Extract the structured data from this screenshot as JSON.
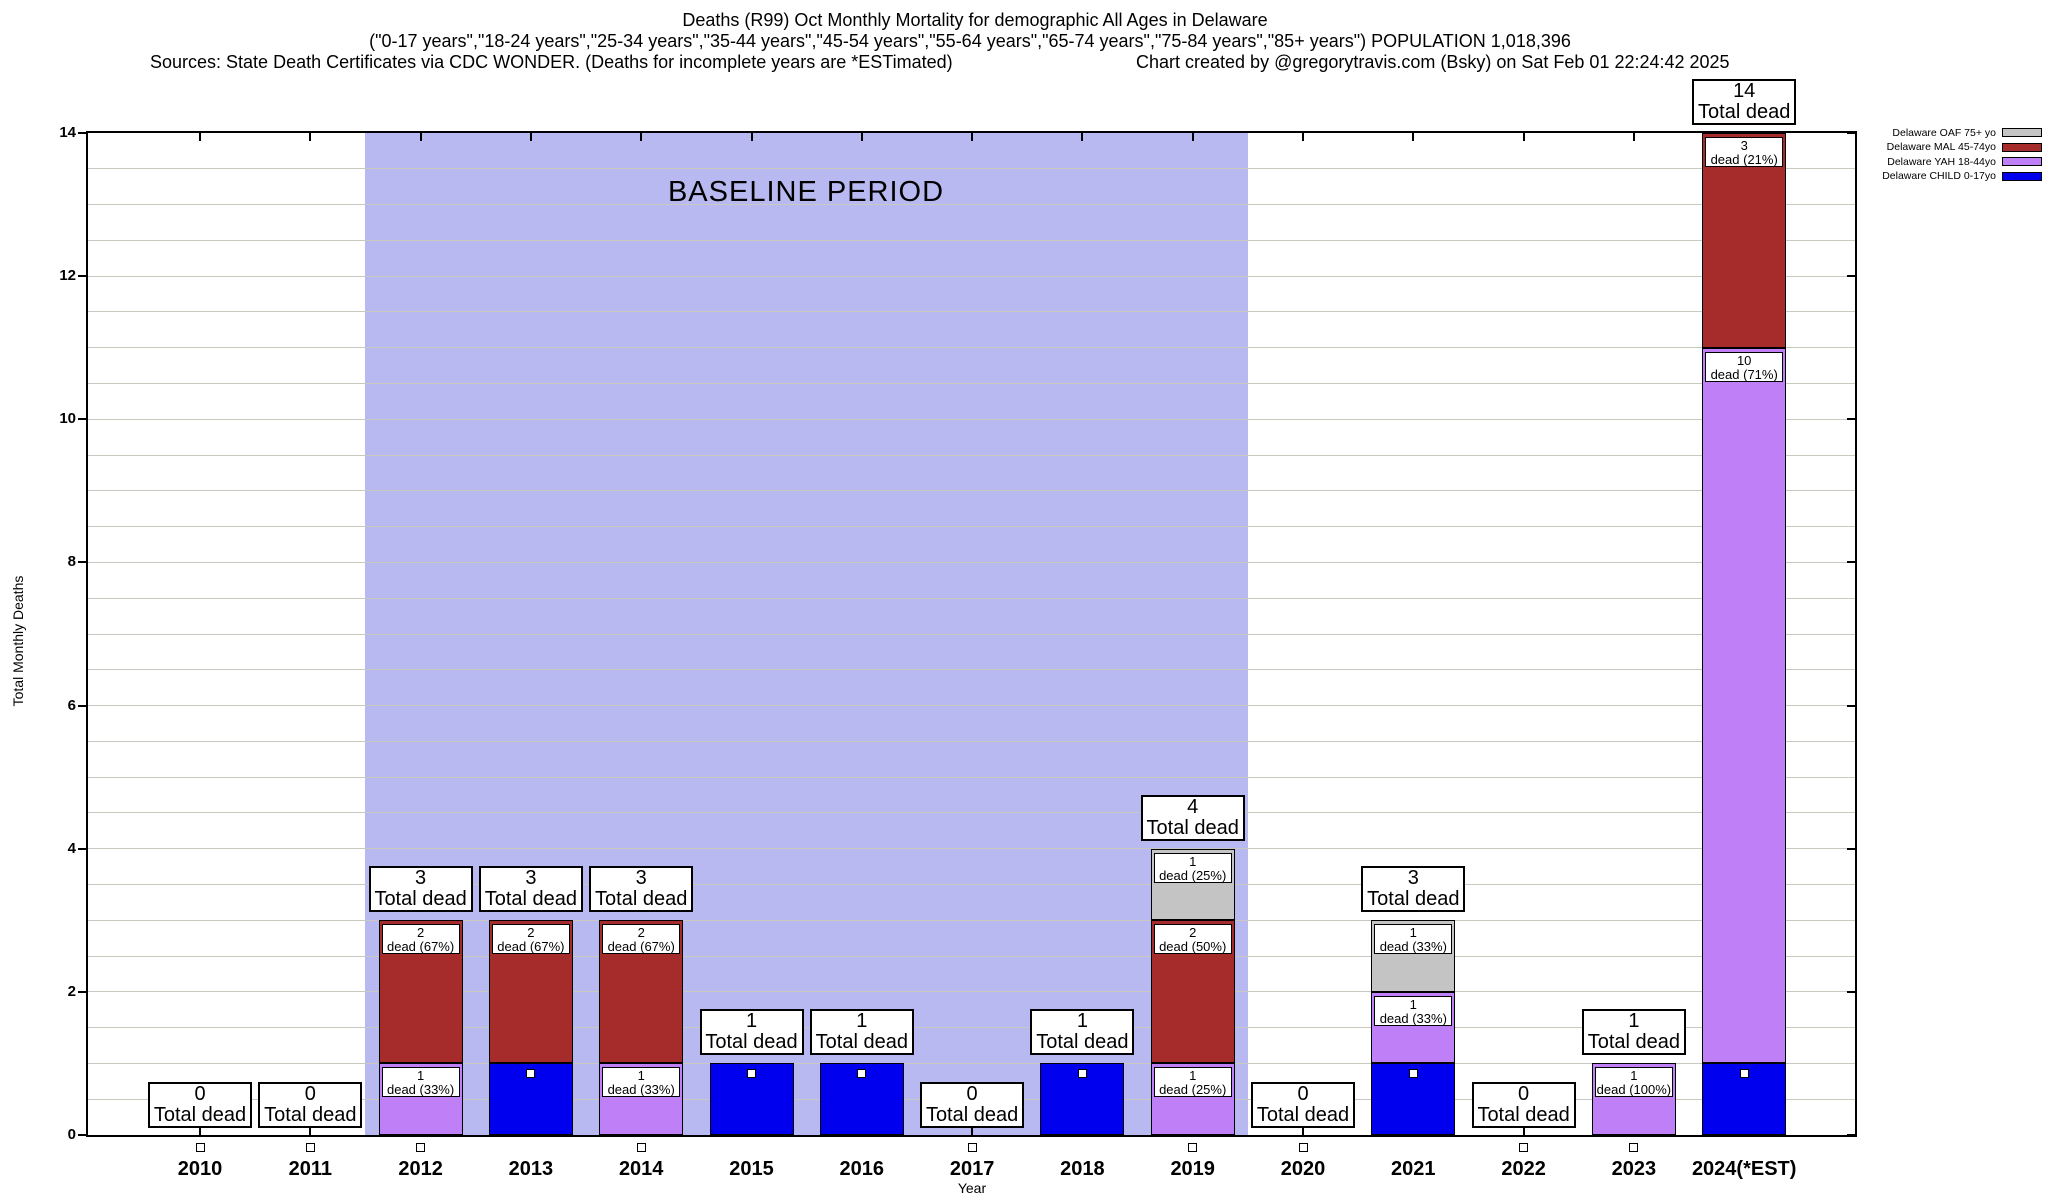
{
  "title": {
    "line1": "Deaths (R99) Oct Monthly Mortality for demographic All Ages in Delaware",
    "line2": "(\"0-17 years\",\"18-24 years\",\"25-34 years\",\"35-44 years\",\"45-54 years\",\"55-64 years\",\"65-74 years\",\"75-84 years\",\"85+ years\") POPULATION 1,018,396",
    "line3_left": "Sources: State Death Certificates via CDC WONDER. (Deaths for incomplete years are *ESTimated)",
    "line3_right": "Chart created by @gregorytravis.com (Bsky) on Sat Feb 01 22:24:42 2025"
  },
  "colors": {
    "baseline_fill": "#b9b9f2",
    "grid": "#c9c9c0",
    "axis": "#000000"
  },
  "chart_data": {
    "type": "bar",
    "stacked": true,
    "title": "Deaths (R99) Oct Monthly Mortality for demographic All Ages in Delaware",
    "xlabel": "Year",
    "ylabel": "Total Monthly Deaths",
    "ylim": [
      0,
      14
    ],
    "ytick_step": 2,
    "minor_grid_step": 0.5,
    "grid": true,
    "legend_position": "top-right-outside",
    "baseline_period": {
      "label": "BASELINE PERIOD",
      "start": "2012",
      "end": "2019"
    },
    "categories": [
      "2010",
      "2011",
      "2012",
      "2013",
      "2014",
      "2015",
      "2016",
      "2017",
      "2018",
      "2019",
      "2020",
      "2021",
      "2022",
      "2023",
      "2024(*EST)"
    ],
    "totals": [
      0,
      0,
      3,
      3,
      3,
      1,
      1,
      0,
      1,
      4,
      0,
      3,
      0,
      1,
      14
    ],
    "total_label": "Total dead",
    "series": [
      {
        "name": "Delaware CHILD 0-17yo",
        "color": "#0000ee",
        "values": [
          0,
          0,
          0,
          1,
          0,
          1,
          1,
          0,
          1,
          0,
          0,
          1,
          0,
          0,
          1
        ],
        "labels": [
          null,
          null,
          null,
          null,
          null,
          null,
          null,
          null,
          null,
          null,
          null,
          null,
          null,
          null,
          null
        ]
      },
      {
        "name": "Delaware YAH 18-44yo",
        "color": "#bf80f7",
        "values": [
          0,
          0,
          1,
          0,
          1,
          0,
          0,
          0,
          0,
          1,
          0,
          1,
          0,
          1,
          10
        ],
        "labels": [
          null,
          null,
          {
            "v": 1,
            "pct": 33
          },
          null,
          {
            "v": 1,
            "pct": 33
          },
          null,
          null,
          null,
          null,
          {
            "v": 1,
            "pct": 25
          },
          null,
          {
            "v": 1,
            "pct": 33
          },
          null,
          {
            "v": 1,
            "pct": 100
          },
          {
            "v": 10,
            "pct": 71
          }
        ]
      },
      {
        "name": "Delaware MAL 45-74yo",
        "color": "#a62c2c",
        "values": [
          0,
          0,
          2,
          2,
          2,
          0,
          0,
          0,
          0,
          2,
          0,
          0,
          0,
          0,
          3
        ],
        "labels": [
          null,
          null,
          {
            "v": 2,
            "pct": 67
          },
          {
            "v": 2,
            "pct": 67
          },
          {
            "v": 2,
            "pct": 67
          },
          null,
          null,
          null,
          null,
          {
            "v": 2,
            "pct": 50
          },
          null,
          null,
          null,
          null,
          {
            "v": 3,
            "pct": 21
          }
        ]
      },
      {
        "name": "Delaware OAF 75+ yo",
        "color": "#c4c4c4",
        "values": [
          0,
          0,
          0,
          0,
          0,
          0,
          0,
          0,
          0,
          1,
          0,
          1,
          0,
          0,
          0
        ],
        "labels": [
          null,
          null,
          null,
          null,
          null,
          null,
          null,
          null,
          null,
          {
            "v": 1,
            "pct": 25
          },
          null,
          {
            "v": 1,
            "pct": 33
          },
          null,
          null,
          null
        ]
      }
    ],
    "segment_label_word": "dead",
    "marker": {
      "shape": "white-square",
      "for_series": "Delaware CHILD 0-17yo"
    },
    "legend": [
      {
        "label": "Delaware OAF 75+ yo",
        "color": "#c4c4c4"
      },
      {
        "label": "Delaware MAL 45-74yo",
        "color": "#a62c2c"
      },
      {
        "label": "Delaware YAH 18-44yo",
        "color": "#bf80f7"
      },
      {
        "label": "Delaware CHILD 0-17yo",
        "color": "#0000ee"
      }
    ],
    "ytick_labels": [
      "0",
      "2",
      "4",
      "6",
      "8",
      "10",
      "12",
      "14"
    ]
  }
}
